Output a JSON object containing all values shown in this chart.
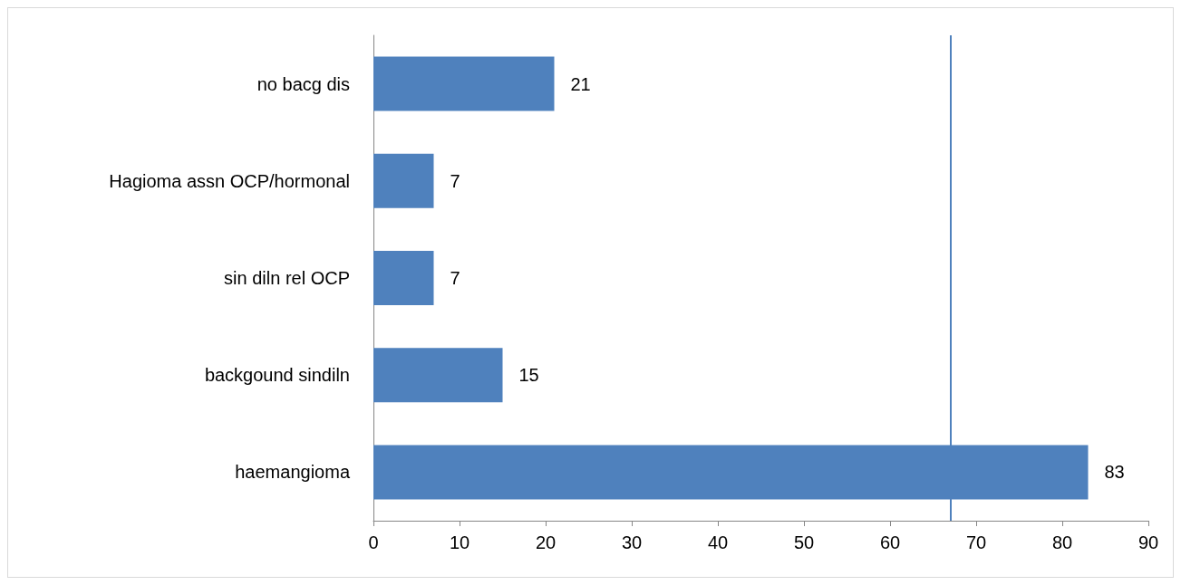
{
  "chart_data": {
    "type": "bar",
    "orientation": "horizontal",
    "categories": [
      "no bacg dis",
      "Hagioma assn OCP/hormonal",
      "sin diln rel OCP",
      "backgound sindiln",
      "haemangioma"
    ],
    "values": [
      21,
      7,
      7,
      15,
      83
    ],
    "color": "#4f81bd",
    "data_labels": true,
    "xlim": [
      0,
      90
    ],
    "xticks": [
      0,
      10,
      20,
      30,
      40,
      50,
      60,
      70,
      80,
      90
    ],
    "grid": false,
    "ref_lines": [
      {
        "axis": "x",
        "value": 67,
        "color": "#4f81bd"
      }
    ]
  }
}
